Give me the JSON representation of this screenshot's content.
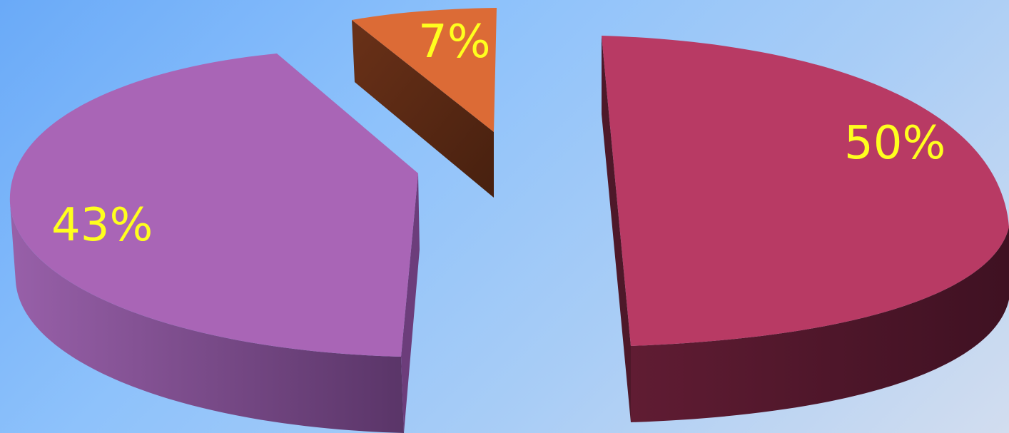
{
  "chart_data": {
    "type": "pie",
    "style": "3d-exploded",
    "slices": [
      {
        "label": "50%",
        "value": 50,
        "color": "#b83a64",
        "side_color": "#4e1829"
      },
      {
        "label": "7%",
        "value": 7,
        "color": "#dc6b36",
        "side_color": "#582914"
      },
      {
        "label": "43%",
        "value": 43,
        "color": "#a965b6",
        "side_color": "#6b3f7a"
      }
    ],
    "label_color": "#ffff1e",
    "background": [
      "#6aaaf8",
      "#d2ddef"
    ]
  }
}
